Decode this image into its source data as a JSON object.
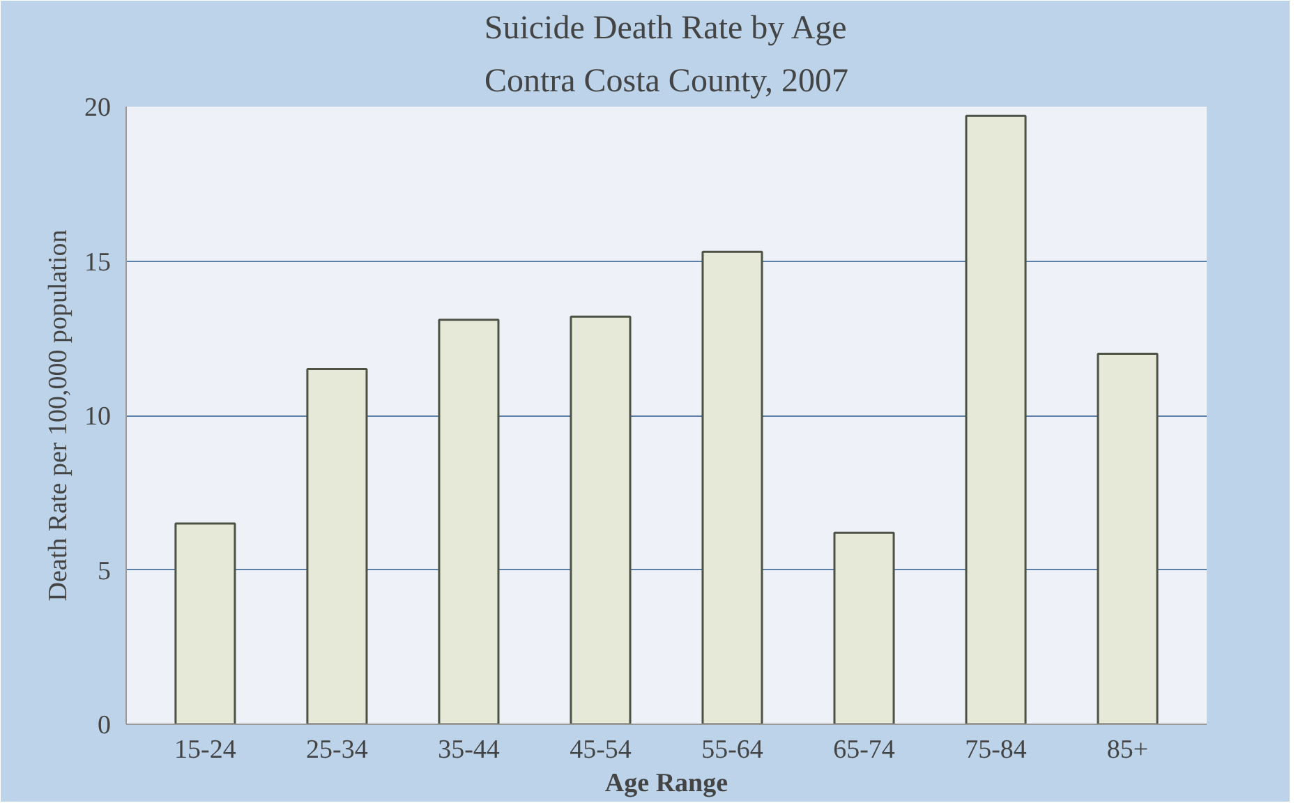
{
  "chart_data": {
    "type": "bar",
    "title": "Suicide Death Rate by Age",
    "subtitle": "Contra Costa County, 2007",
    "xlabel": "Age Range",
    "ylabel": "Death Rate per 100,000 population",
    "categories": [
      "15-24",
      "25-34",
      "35-44",
      "45-54",
      "55-64",
      "65-74",
      "75-84",
      "85+"
    ],
    "values": [
      6.5,
      11.5,
      13.1,
      13.2,
      15.3,
      6.2,
      19.7,
      12.0
    ],
    "color": "#e6e9d8",
    "ylim": [
      0,
      20
    ],
    "yticks": [
      0,
      5,
      10,
      15,
      20
    ],
    "grid": "y"
  }
}
